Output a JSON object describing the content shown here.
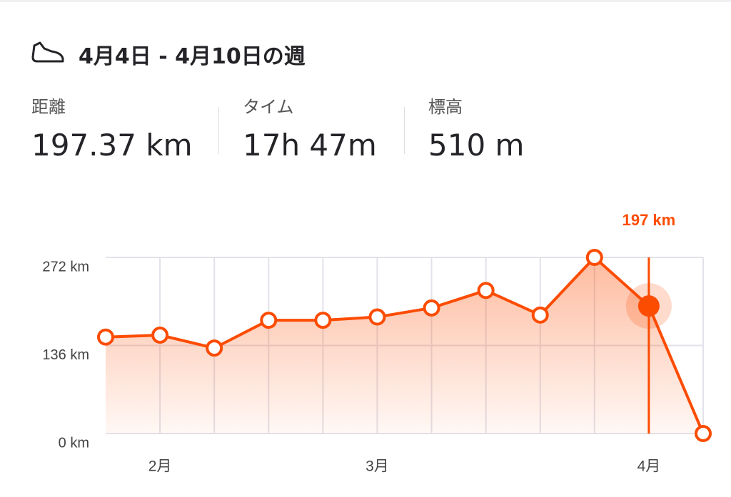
{
  "header": {
    "title": "4月4日 - 4月10日の週"
  },
  "stats": [
    {
      "label": "距離",
      "value": "197.37 km"
    },
    {
      "label": "タイム",
      "value": "17h 47m"
    },
    {
      "label": "標高",
      "value": "510 m"
    }
  ],
  "chart_data": {
    "type": "line",
    "categories": [
      null,
      "2月",
      null,
      null,
      null,
      "3月",
      null,
      null,
      null,
      null,
      "4月",
      null
    ],
    "series": [
      {
        "color": "#fc4c02",
        "values": [
          149,
          152,
          132,
          175,
          175,
          180,
          194,
          221,
          183,
          272,
          197,
          0
        ],
        "value_labels": [
          null,
          null,
          null,
          null,
          null,
          null,
          null,
          null,
          null,
          null,
          "197 km",
          null
        ]
      }
    ],
    "ylim": [
      0,
      272
    ],
    "yticks": [
      {
        "value": 0,
        "label": "0 km"
      },
      {
        "value": 136,
        "label": "136 km"
      },
      {
        "value": 272,
        "label": "272 km"
      }
    ],
    "grid": true
  }
}
